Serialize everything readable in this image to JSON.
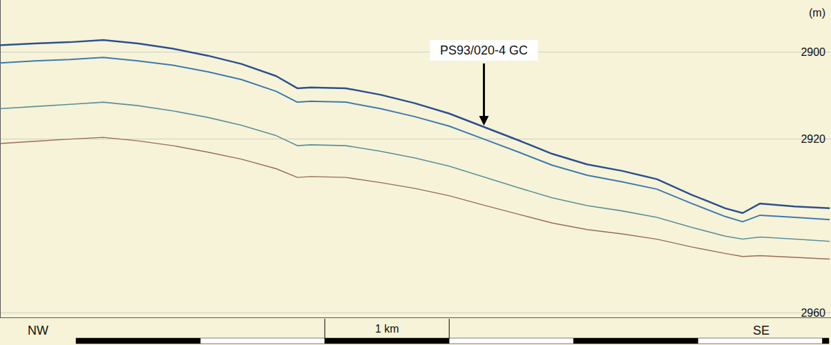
{
  "chart_data": {
    "type": "line",
    "y_label": "(m)",
    "direction_labels": {
      "left": "NW",
      "right": "SE"
    },
    "scale_bar": {
      "length": 1,
      "label": "1 km"
    },
    "annotations": [
      {
        "text": "PS93/020-4 GC",
        "x": 3.89,
        "y": 2917.2
      }
    ],
    "x": [
      0,
      0.28,
      0.56,
      0.83,
      1.11,
      1.39,
      1.67,
      1.94,
      2.22,
      2.39,
      2.5,
      2.78,
      3.06,
      3.33,
      3.61,
      3.89,
      4.17,
      4.44,
      4.72,
      5.0,
      5.28,
      5.56,
      5.83,
      5.97,
      6.11,
      6.39,
      6.67
    ],
    "series": [
      {
        "color": "#2b4f8f",
        "values": [
          2898.4,
          2898,
          2897.7,
          2897.2,
          2898,
          2899.2,
          2900.8,
          2902.7,
          2905.5,
          2908.3,
          2908.1,
          2908.3,
          2909.8,
          2911.7,
          2914.1,
          2917.2,
          2920.3,
          2923.4,
          2925.8,
          2927.3,
          2929.2,
          2932.8,
          2935.9,
          2937,
          2934.8,
          2935.5,
          2935.9
        ]
      },
      {
        "color": "#3d79b0",
        "values": [
          2902.5,
          2902,
          2901.7,
          2901.2,
          2902,
          2903,
          2904.5,
          2906.3,
          2909,
          2911.5,
          2911.3,
          2911.5,
          2913,
          2914.8,
          2917,
          2920,
          2923,
          2926,
          2928.3,
          2929.8,
          2931.5,
          2934.8,
          2937.8,
          2939,
          2937.5,
          2938,
          2938.5
        ]
      },
      {
        "color": "#5a8f9a",
        "values": [
          2913,
          2912.5,
          2912,
          2911.5,
          2912.3,
          2913.5,
          2915,
          2916.8,
          2919.2,
          2921.5,
          2921.3,
          2921.5,
          2922.8,
          2924.3,
          2926.2,
          2928.7,
          2931.2,
          2933.5,
          2935.3,
          2936.5,
          2938,
          2940.3,
          2942.3,
          2943,
          2942.5,
          2943,
          2943.5
        ]
      },
      {
        "color": "#9a6a55",
        "values": [
          2921,
          2920.5,
          2920,
          2919.6,
          2920.4,
          2921.5,
          2923,
          2924.6,
          2926.8,
          2928.8,
          2928.6,
          2928.8,
          2930,
          2931.3,
          2933,
          2935.2,
          2937.3,
          2939.3,
          2940.8,
          2941.8,
          2943,
          2944.8,
          2946.3,
          2947,
          2946.8,
          2947.2,
          2947.6
        ]
      }
    ],
    "xlim": [
      0,
      6.68
    ],
    "ylim": [
      2888,
      2961
    ],
    "yticks": [
      2900,
      2920,
      2960
    ],
    "grid": true,
    "tick_labels": "y"
  }
}
